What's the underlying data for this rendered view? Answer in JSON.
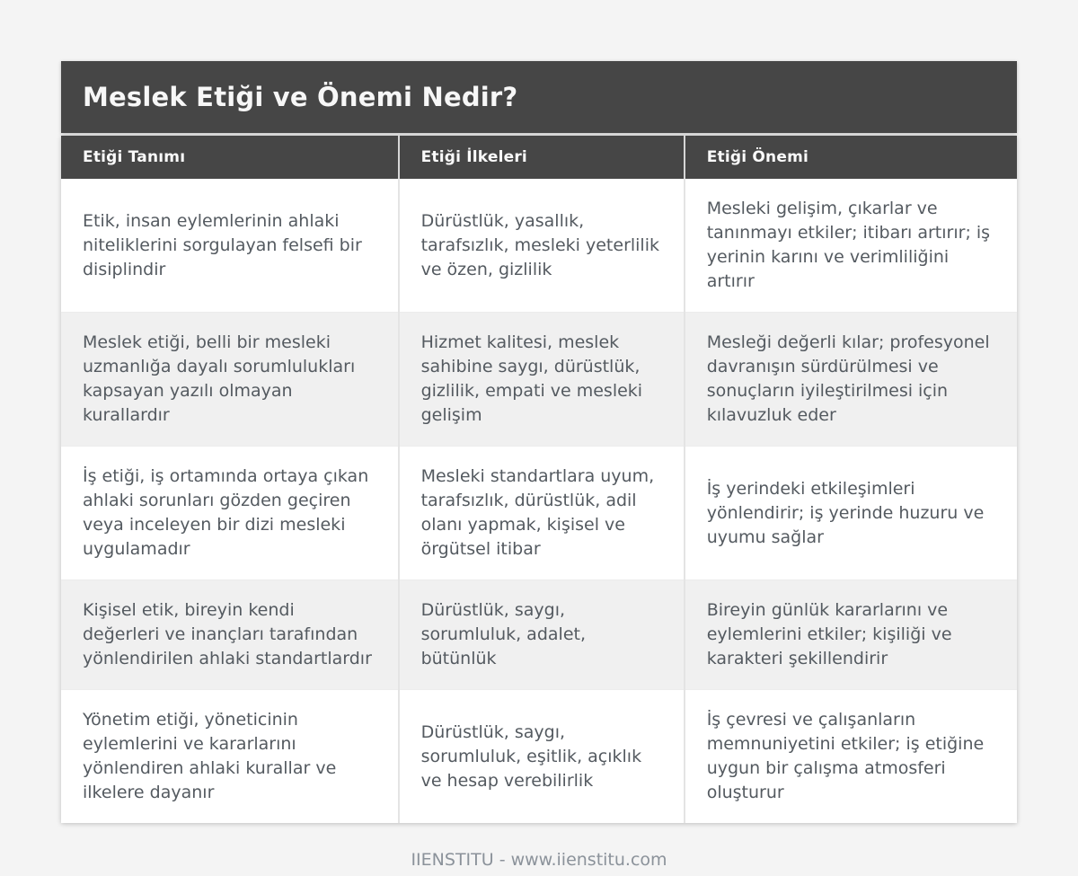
{
  "page": {
    "title": "Meslek Etiği ve Önemi Nedir?",
    "footer": "IIENSTITU - www.iienstitu.com"
  },
  "table": {
    "columns": [
      "Etiği Tanımı",
      "Etiği İlkeleri",
      "Etiği Önemi"
    ],
    "rows": [
      [
        "Etik, insan eylemlerinin ahlaki niteliklerini sorgulayan felsefi bir disiplindir",
        "Dürüstlük, yasallık, tarafsızlık, mesleki yeterlilik ve özen, gizlilik",
        "Mesleki gelişim, çıkarlar ve tanınmayı etkiler; itibarı artırır; iş yerinin karını ve verimliliğini artırır"
      ],
      [
        "Meslek etiği, belli bir mesleki uzmanlığa dayalı sorumlulukları kapsayan yazılı olmayan kurallardır",
        "Hizmet kalitesi, meslek sahibine saygı, dürüstlük, gizlilik, empati ve mesleki gelişim",
        "Mesleği değerli kılar; profesyonel davranışın sürdürülmesi ve sonuçların iyileştirilmesi için kılavuzluk eder"
      ],
      [
        "İş etiği, iş ortamında ortaya çıkan ahlaki sorunları gözden geçiren veya inceleyen bir dizi mesleki uygulamadır",
        "Mesleki standartlara uyum, tarafsızlık, dürüstlük, adil olanı yapmak, kişisel ve örgütsel itibar",
        "İş yerindeki etkileşimleri yönlendirir; iş yerinde huzuru ve uyumu sağlar"
      ],
      [
        "Kişisel etik, bireyin kendi değerleri ve inançları tarafından yönlendirilen ahlaki standartlardır",
        "Dürüstlük, saygı, sorumluluk, adalet, bütünlük",
        "Bireyin günlük kararlarını ve eylemlerini etkiler; kişiliği ve karakteri şekillendirir"
      ],
      [
        "Yönetim etiği, yöneticinin eylemlerini ve kararlarını yönlendiren ahlaki kurallar ve ilkelere dayanır",
        "Dürüstlük, saygı, sorumluluk, eşitlik, açıklık ve hesap verebilirlik",
        "İş çevresi ve çalışanların memnuniyetini etkiler; iş etiğine uygun bir çalışma atmosferi oluşturur"
      ]
    ]
  },
  "colors": {
    "header_bg": "#464646",
    "header_text": "#fafafa",
    "cell_text": "#545a60",
    "row_alt_bg": "#f0f0f0",
    "page_bg": "#f4f4f4",
    "footer_text": "#8b929a"
  }
}
